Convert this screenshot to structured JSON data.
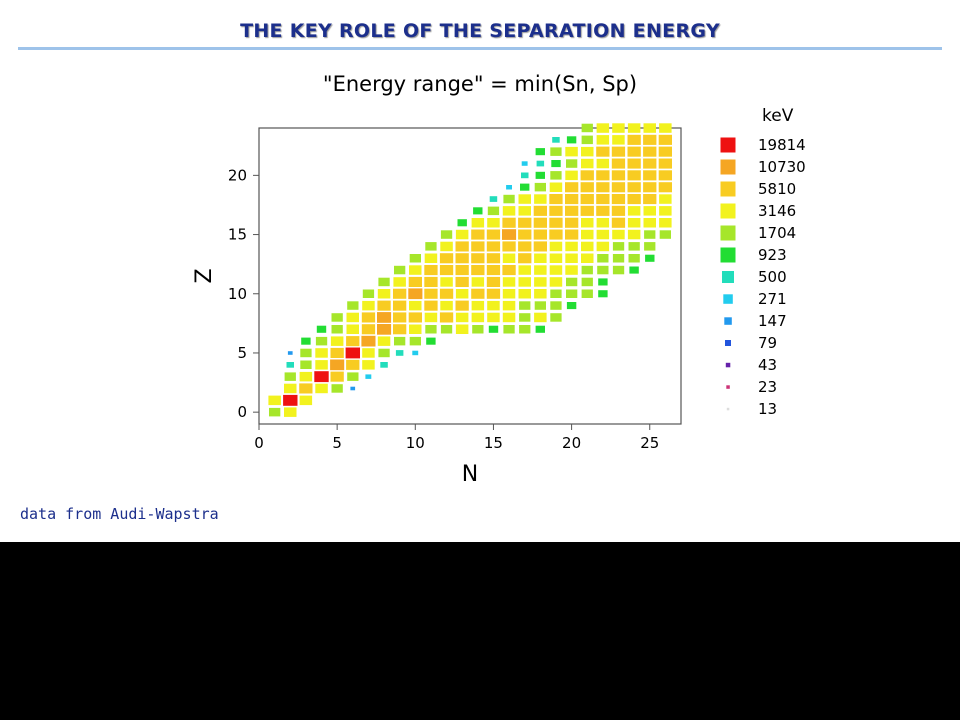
{
  "slide": {
    "title": "THE KEY ROLE OF THE SEPARATION ENERGY",
    "subtitle": "\"Energy range\" = min(Sn, Sp)",
    "unit": "keV",
    "source": "data from Audi-Wapstra"
  },
  "chart_data": {
    "type": "heatmap",
    "title": "",
    "xlabel": "N",
    "ylabel": "Z",
    "xlim": [
      0,
      27
    ],
    "ylim": [
      -1,
      24
    ],
    "xticks": [
      0,
      5,
      10,
      15,
      20,
      25
    ],
    "yticks": [
      0,
      5,
      10,
      15,
      20
    ],
    "grid": false,
    "legend_position": "right",
    "legend_title": "keV",
    "levels": [
      {
        "label": "19814",
        "color": "#ee1111"
      },
      {
        "label": "10730",
        "color": "#f5a623"
      },
      {
        "label": "5810",
        "color": "#f8cc22"
      },
      {
        "label": "3146",
        "color": "#f2f21e"
      },
      {
        "label": "1704",
        "color": "#a6e62a"
      },
      {
        "label": "923",
        "color": "#22dd33"
      },
      {
        "label": "500",
        "color": "#22ddbb"
      },
      {
        "label": "271",
        "color": "#22ccee"
      },
      {
        "label": "147",
        "color": "#2299ee"
      },
      {
        "label": "79",
        "color": "#2255dd"
      },
      {
        "label": "43",
        "color": "#6622aa"
      },
      {
        "label": "23",
        "color": "#cc3377"
      },
      {
        "label": "13",
        "color": "#dddddd"
      }
    ],
    "rows": [
      {
        "z": 0,
        "n_from": 1,
        "levels": [
          4,
          3
        ]
      },
      {
        "z": 1,
        "n_from": 1,
        "levels": [
          3,
          0,
          3
        ]
      },
      {
        "z": 2,
        "n_from": 2,
        "levels": [
          3,
          2,
          3,
          4,
          8
        ]
      },
      {
        "z": 3,
        "n_from": 2,
        "levels": [
          4,
          3,
          0,
          2,
          4,
          7
        ]
      },
      {
        "z": 4,
        "n_from": 2,
        "levels": [
          6,
          4,
          3,
          1,
          2,
          3,
          6
        ]
      },
      {
        "z": 5,
        "n_from": 2,
        "levels": [
          8,
          4,
          3,
          2,
          0,
          3,
          4,
          6,
          7
        ]
      },
      {
        "z": 6,
        "n_from": 3,
        "levels": [
          5,
          4,
          3,
          2,
          1,
          3,
          4,
          4,
          5
        ]
      },
      {
        "z": 7,
        "n_from": 4,
        "levels": [
          5,
          4,
          3,
          2,
          1,
          2,
          3,
          4,
          4,
          3,
          4,
          5,
          4,
          4,
          5
        ]
      },
      {
        "z": 8,
        "n_from": 5,
        "levels": [
          4,
          3,
          2,
          1,
          2,
          2,
          3,
          2,
          3,
          3,
          3,
          3,
          4,
          3,
          4
        ]
      },
      {
        "z": 9,
        "n_from": 6,
        "levels": [
          4,
          3,
          2,
          2,
          3,
          2,
          3,
          2,
          3,
          3,
          3,
          4,
          4,
          4,
          5
        ]
      },
      {
        "z": 10,
        "n_from": 7,
        "levels": [
          4,
          3,
          2,
          1,
          2,
          2,
          3,
          2,
          2,
          3,
          3,
          3,
          4,
          4,
          4,
          5
        ]
      },
      {
        "z": 11,
        "n_from": 8,
        "levels": [
          4,
          3,
          2,
          2,
          3,
          2,
          3,
          2,
          3,
          3,
          3,
          3,
          4,
          4,
          5
        ]
      },
      {
        "z": 12,
        "n_from": 9,
        "levels": [
          4,
          3,
          2,
          2,
          2,
          2,
          2,
          2,
          3,
          3,
          3,
          3,
          4,
          4,
          4,
          5
        ]
      },
      {
        "z": 13,
        "n_from": 10,
        "levels": [
          4,
          3,
          2,
          2,
          2,
          2,
          3,
          2,
          3,
          3,
          3,
          3,
          4,
          4,
          4,
          5
        ]
      },
      {
        "z": 14,
        "n_from": 11,
        "levels": [
          4,
          3,
          2,
          2,
          2,
          2,
          2,
          2,
          3,
          3,
          3,
          3,
          4,
          4,
          4
        ]
      },
      {
        "z": 15,
        "n_from": 12,
        "levels": [
          4,
          3,
          2,
          2,
          1,
          2,
          2,
          2,
          2,
          3,
          3,
          3,
          3,
          4,
          4
        ]
      },
      {
        "z": 16,
        "n_from": 13,
        "levels": [
          5,
          3,
          3,
          2,
          2,
          2,
          2,
          2,
          3,
          3,
          2,
          3,
          3,
          3
        ]
      },
      {
        "z": 17,
        "n_from": 14,
        "levels": [
          5,
          4,
          3,
          3,
          2,
          2,
          2,
          2,
          2,
          2,
          3,
          3,
          3
        ]
      },
      {
        "z": 18,
        "n_from": 15,
        "levels": [
          6,
          4,
          3,
          3,
          2,
          2,
          2,
          2,
          2,
          2,
          2,
          3
        ]
      },
      {
        "z": 19,
        "n_from": 16,
        "levels": [
          7,
          5,
          4,
          3,
          2,
          2,
          2,
          2,
          2,
          2,
          2
        ]
      },
      {
        "z": 20,
        "n_from": 17,
        "levels": [
          6,
          5,
          4,
          3,
          2,
          2,
          2,
          2,
          2,
          2
        ]
      },
      {
        "z": 21,
        "n_from": 17,
        "levels": [
          7,
          6,
          5,
          4,
          3,
          3,
          2,
          2,
          2,
          2
        ]
      },
      {
        "z": 22,
        "n_from": 18,
        "levels": [
          5,
          4,
          3,
          3,
          2,
          2,
          2,
          2,
          2
        ]
      },
      {
        "z": 23,
        "n_from": 19,
        "levels": [
          6,
          5,
          4,
          3,
          3,
          2,
          2,
          2,
          2
        ]
      },
      {
        "z": 24,
        "n_from": 21,
        "levels": [
          4,
          3,
          3,
          3,
          3,
          3
        ]
      }
    ]
  }
}
